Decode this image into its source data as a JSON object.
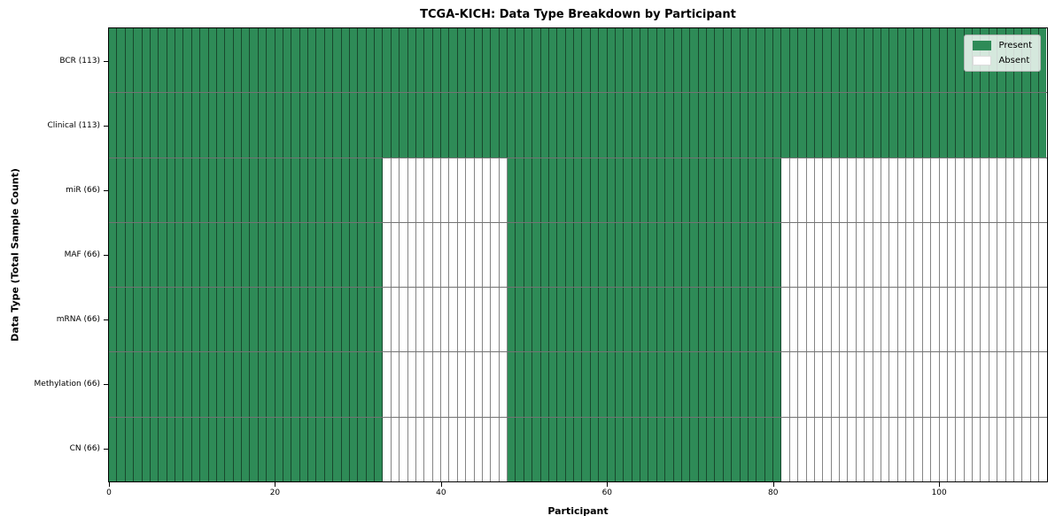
{
  "chart_data": {
    "type": "heatmap",
    "title": "TCGA-KICH: Data Type Breakdown by Participant",
    "xlabel": "Participant",
    "ylabel": "Data Type (Total Sample Count)",
    "n_participants": 113,
    "x_ticks": [
      0,
      20,
      40,
      60,
      80,
      100
    ],
    "rows": [
      {
        "label": "BCR (113)",
        "data_type": "BCR",
        "sample_count": 113,
        "present_ranges": [
          [
            0,
            113
          ]
        ]
      },
      {
        "label": "Clinical (113)",
        "data_type": "Clinical",
        "sample_count": 113,
        "present_ranges": [
          [
            0,
            113
          ]
        ]
      },
      {
        "label": "miR (66)",
        "data_type": "miR",
        "sample_count": 66,
        "present_ranges": [
          [
            0,
            33
          ],
          [
            48,
            81
          ]
        ]
      },
      {
        "label": "MAF (66)",
        "data_type": "MAF",
        "sample_count": 66,
        "present_ranges": [
          [
            0,
            33
          ],
          [
            48,
            81
          ]
        ]
      },
      {
        "label": "mRNA (66)",
        "data_type": "mRNA",
        "sample_count": 66,
        "present_ranges": [
          [
            0,
            33
          ],
          [
            48,
            81
          ]
        ]
      },
      {
        "label": "Methylation (66)",
        "data_type": "Methylation",
        "sample_count": 66,
        "present_ranges": [
          [
            0,
            33
          ],
          [
            48,
            81
          ]
        ]
      },
      {
        "label": "CN (66)",
        "data_type": "CN",
        "sample_count": 66,
        "present_ranges": [
          [
            0,
            33
          ],
          [
            48,
            81
          ]
        ]
      }
    ],
    "legend": {
      "position": "upper right",
      "entries": [
        {
          "label": "Present",
          "color": "#2e8b57"
        },
        {
          "label": "Absent",
          "color": "#ffffff"
        }
      ]
    },
    "colors": {
      "present": "#2e8b57",
      "absent": "#ffffff",
      "cell_edge": "rgba(0,0,0,0.48)",
      "plot_border": "#000000"
    }
  }
}
